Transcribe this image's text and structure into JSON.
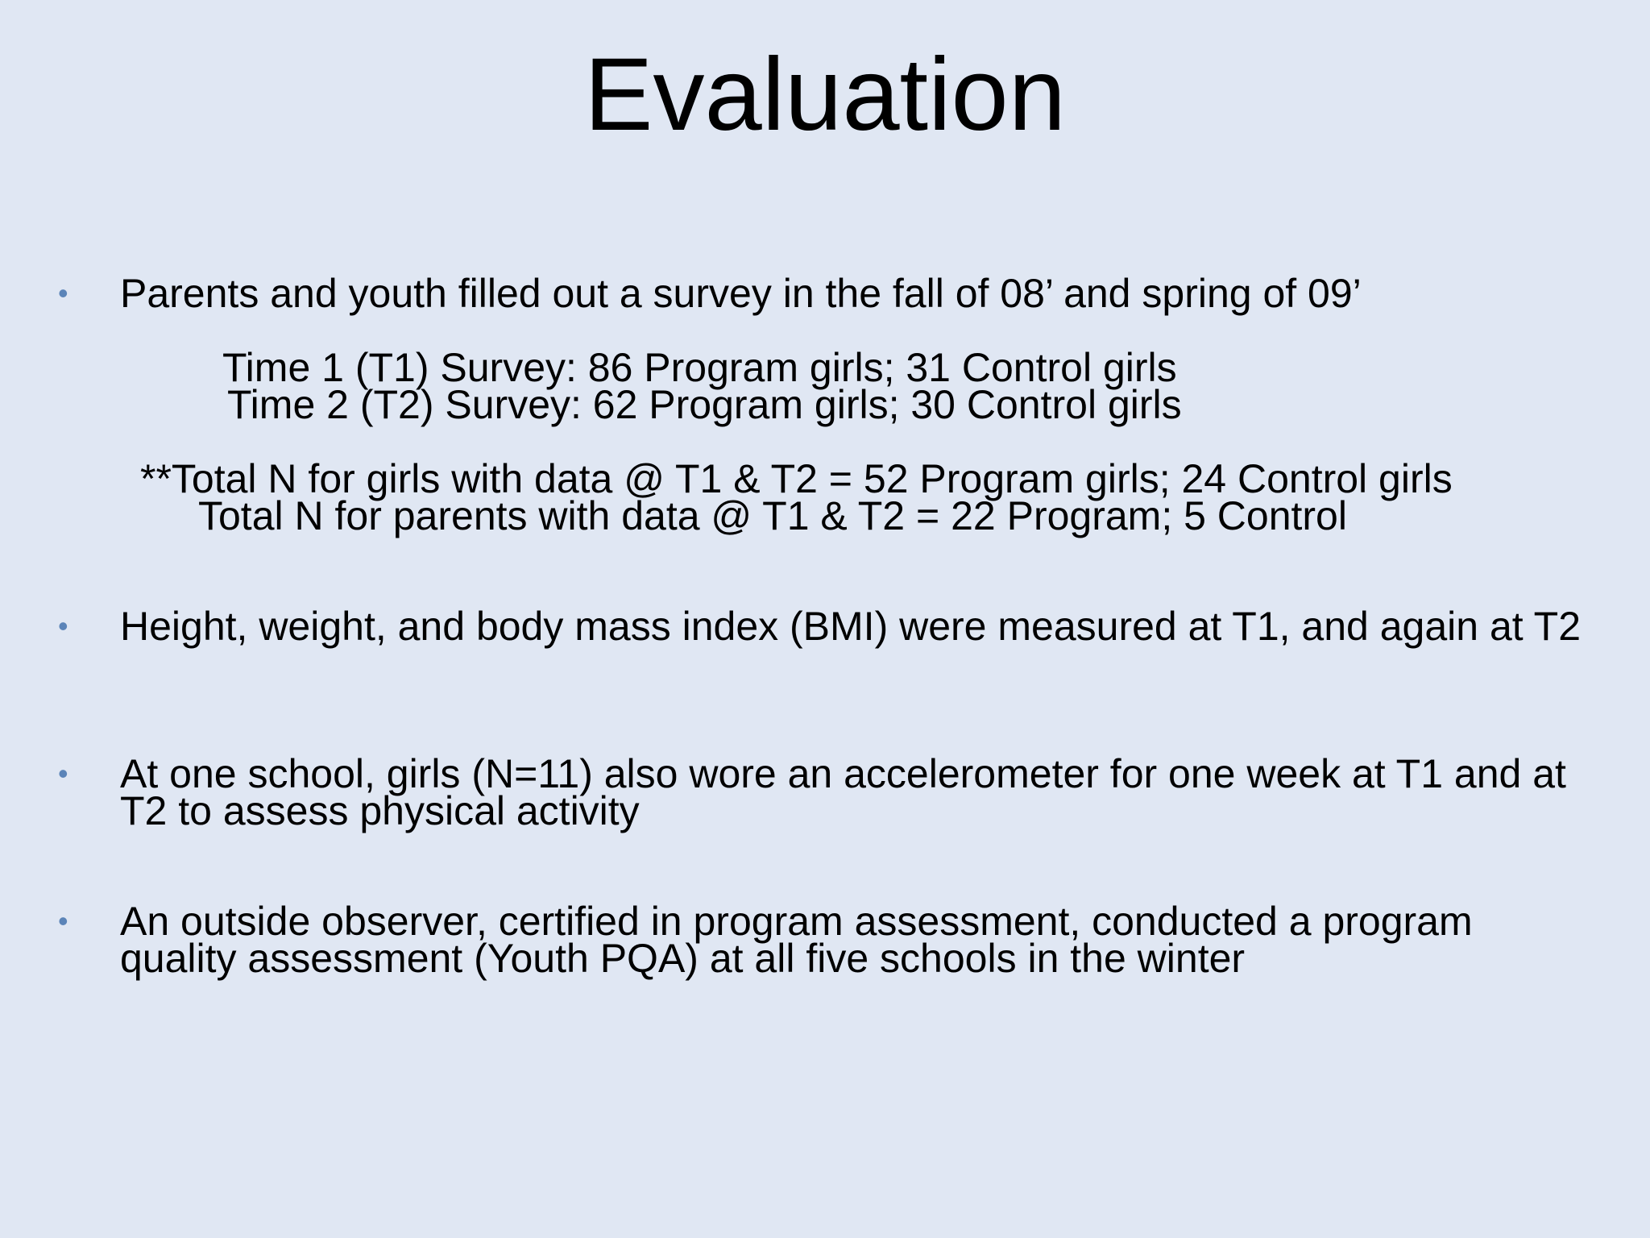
{
  "slide": {
    "title": "Evaluation",
    "bullet_glyph": "•",
    "bullet_color": "#5b84b8",
    "background_color": "#e0e7f3",
    "bullets": [
      {
        "text": "Parents and youth filled out a survey in the fall of 08’ and spring of 09’",
        "sublines": [
          "Time 1 (T1) Survey: 86 Program girls; 31 Control girls",
          "Time 2 (T2) Survey: 62 Program girls; 30 Control girls",
          "**Total N for girls with data @ T1 & T2 = 52 Program girls;  24 Control girls",
          "Total N for parents with data @ T1 & T2 = 22 Program; 5 Control"
        ]
      },
      {
        "text": "Height, weight, and body mass index (BMI) were measured at T1, and again at T2"
      },
      {
        "text": "At one school, girls (N=11) also wore an accelerometer for one week at T1 and at T2 to assess physical activity"
      },
      {
        "text": "An outside observer, certified in program assessment, conducted a program quality assessment (Youth PQA)  at all five schools in the winter"
      }
    ]
  }
}
